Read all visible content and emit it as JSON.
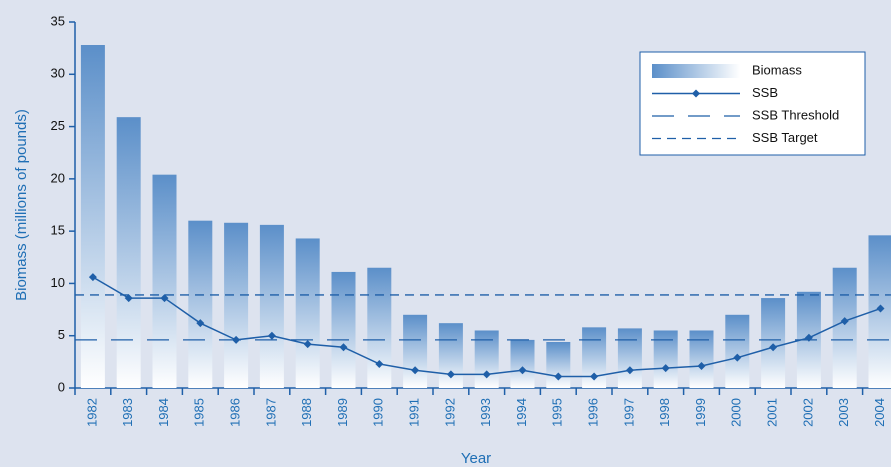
{
  "chart_data": {
    "type": "bar_line",
    "x_label": "Year",
    "y_label": "Biomass (millions of pounds)",
    "categories": [
      "1982",
      "1983",
      "1984",
      "1985",
      "1986",
      "1987",
      "1988",
      "1989",
      "1990",
      "1991",
      "1992",
      "1993",
      "1994",
      "1995",
      "1996",
      "1997",
      "1998",
      "1999",
      "2000",
      "2001",
      "2002",
      "2003",
      "2004"
    ],
    "series": [
      {
        "name": "Biomass",
        "kind": "bar",
        "color": "#5b8fc9",
        "values": [
          32.8,
          25.9,
          20.4,
          16.0,
          15.8,
          15.6,
          14.3,
          11.1,
          11.5,
          7.0,
          6.2,
          5.5,
          4.6,
          4.4,
          5.8,
          5.7,
          5.5,
          5.5,
          7.0,
          8.6,
          9.2,
          11.5,
          14.6
        ]
      },
      {
        "name": "SSB",
        "kind": "line",
        "color": "#1f5fa8",
        "values": [
          10.6,
          8.6,
          8.6,
          6.2,
          4.6,
          5.0,
          4.2,
          3.9,
          2.3,
          1.7,
          1.3,
          1.3,
          1.7,
          1.1,
          1.1,
          1.7,
          1.9,
          2.1,
          2.9,
          3.9,
          4.8,
          6.4,
          7.6
        ]
      }
    ],
    "reference_lines": [
      {
        "name": "SSB Threshold",
        "value": 4.6,
        "dash": "long",
        "color": "#1f5fa8"
      },
      {
        "name": "SSB Target",
        "value": 8.9,
        "dash": "short",
        "color": "#1f5fa8"
      }
    ],
    "ylim": [
      0,
      35
    ],
    "yticks": [
      0,
      5,
      10,
      15,
      20,
      25,
      30,
      35
    ],
    "grid": false
  }
}
